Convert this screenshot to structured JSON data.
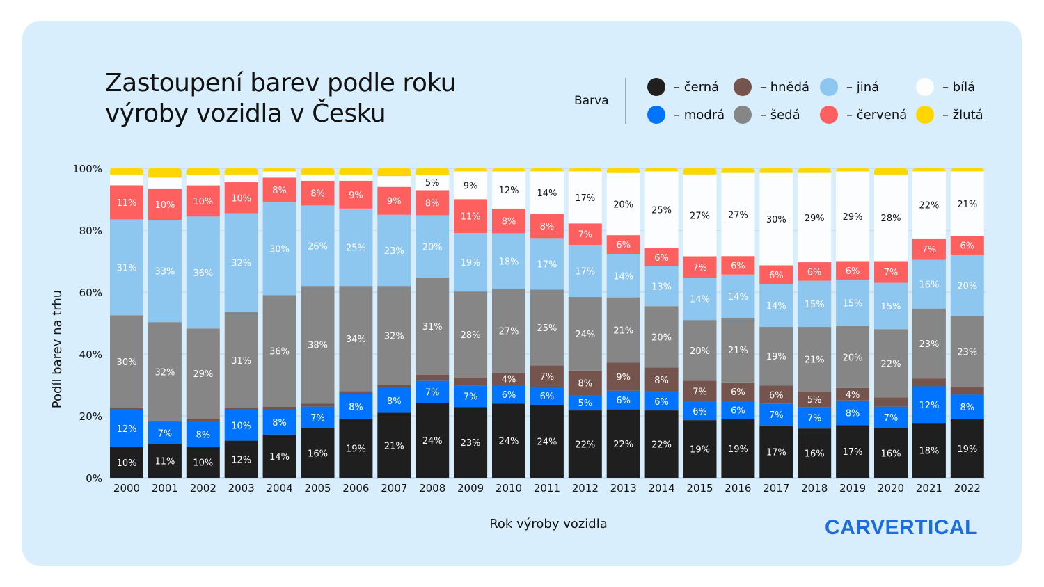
{
  "title": [
    "Zastoupení barev podle roku",
    "výroby vozidla v Česku"
  ],
  "legend": {
    "title": "Barva",
    "items": [
      {
        "label": "– černá",
        "color": "#1f1f1f"
      },
      {
        "label": "– hnědá",
        "color": "#74544c"
      },
      {
        "label": "– jiná",
        "color": "#8dc6ef"
      },
      {
        "label": "– bílá",
        "color": "#fbfdff"
      },
      {
        "label": "– modrá",
        "color": "#0073ff"
      },
      {
        "label": "– šedá",
        "color": "#868686"
      },
      {
        "label": "– červená",
        "color": "#fe5f5f"
      },
      {
        "label": "– žlutá",
        "color": "#ffd600"
      }
    ]
  },
  "logo": "CARVERTICAL",
  "chart_data": {
    "type": "bar",
    "stacked": true,
    "xlabel": "Rok výroby vozidla",
    "ylabel": "Podíl barev na trhu",
    "ylim": [
      0,
      100
    ],
    "yticks": [
      "0%",
      "20%",
      "40%",
      "60%",
      "80%",
      "100%"
    ],
    "grid": true,
    "legend_placement": "top-right",
    "categories": [
      "2000",
      "2001",
      "2002",
      "2003",
      "2004",
      "2005",
      "2006",
      "2007",
      "2008",
      "2009",
      "2010",
      "2011",
      "2012",
      "2013",
      "2014",
      "2015",
      "2016",
      "2017",
      "2018",
      "2019",
      "2020",
      "2021",
      "2022"
    ],
    "series": [
      {
        "name": "černá",
        "color": "#1f1f1f",
        "label_color": "#ffffff",
        "values": [
          10,
          11,
          10,
          12,
          14,
          16,
          19,
          21,
          24,
          23,
          24,
          24,
          22,
          22,
          22,
          19,
          19,
          17,
          16,
          17,
          16,
          18,
          19
        ]
      },
      {
        "name": "modrá",
        "color": "#0073ff",
        "label_color": "#ffffff",
        "values": [
          12,
          7,
          8,
          10,
          8,
          7,
          8,
          8,
          7,
          7,
          6,
          6,
          5,
          6,
          6,
          6,
          6,
          7,
          7,
          8,
          7,
          12,
          8
        ]
      },
      {
        "name": "hnědá",
        "color": "#74544c",
        "label_color": "#ffffff",
        "values": [
          0.5,
          0.3,
          1,
          0.5,
          1,
          1,
          1,
          1,
          2,
          2.5,
          4,
          7,
          8,
          9,
          8,
          7,
          6,
          6,
          5,
          4,
          3,
          2.5,
          2.5
        ]
      },
      {
        "name": "šedá",
        "color": "#868686",
        "label_color": "#ffffff",
        "values": [
          30,
          32,
          29,
          31,
          36,
          38,
          34,
          32,
          31,
          28,
          27,
          25,
          24,
          21,
          20,
          20,
          21,
          19,
          21,
          20,
          22,
          23,
          23
        ]
      },
      {
        "name": "jiná",
        "color": "#8dc6ef",
        "label_color": "#ffffff",
        "values": [
          31,
          33,
          36,
          32,
          30,
          26,
          25,
          23,
          20,
          19,
          18,
          17,
          17,
          14,
          13,
          14,
          14,
          14,
          15,
          15,
          15,
          16,
          20
        ]
      },
      {
        "name": "červená",
        "color": "#fe5f5f",
        "label_color": "#ffffff",
        "values": [
          11,
          10,
          10,
          10,
          8,
          8,
          9,
          9,
          8,
          11,
          8,
          8,
          7,
          6,
          6,
          7,
          6,
          6,
          6,
          6,
          7,
          7,
          6
        ]
      },
      {
        "name": "bílá",
        "color": "#fbfdff",
        "label_color": "#111111",
        "values": [
          3.5,
          3.7,
          3.5,
          2.5,
          2,
          2,
          2,
          3.5,
          5,
          9,
          12,
          14,
          17,
          20,
          25,
          27,
          27,
          30,
          29,
          29,
          28,
          22,
          21
        ]
      },
      {
        "name": "žlutá",
        "color": "#ffd600",
        "label_color": "#111111",
        "values": [
          2,
          3,
          2,
          2,
          1,
          2,
          2,
          2.5,
          2,
          1,
          1,
          1,
          1,
          1.5,
          1,
          2,
          1.5,
          1.5,
          1.5,
          1,
          2,
          1,
          1
        ]
      }
    ]
  }
}
